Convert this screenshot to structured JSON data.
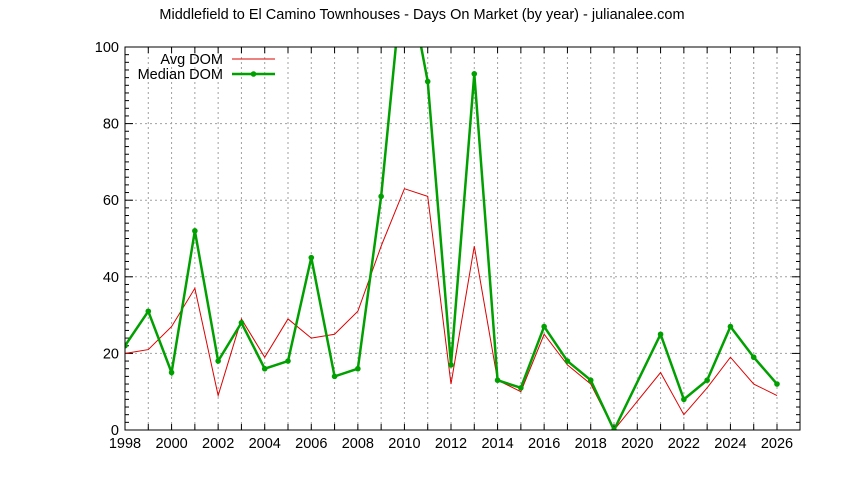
{
  "chart_data": {
    "type": "line",
    "title": "Middlefield to El Camino Townhouses - Days On Market (by year) - julianalee.com",
    "xlabel": "",
    "ylabel": "",
    "xlim": [
      1998,
      2027
    ],
    "ylim": [
      0,
      100
    ],
    "x_ticks": [
      "1998",
      "2000",
      "2002",
      "2004",
      "2006",
      "2008",
      "2010",
      "2012",
      "2014",
      "2016",
      "2018",
      "2020",
      "2022",
      "2024",
      "2026"
    ],
    "y_ticks": [
      "0",
      "20",
      "40",
      "60",
      "80",
      "100"
    ],
    "grid": true,
    "legend_position": "top-left",
    "series": [
      {
        "name": "Avg DOM",
        "color": "#dd0000",
        "x": [
          1998,
          1999,
          2000,
          2001,
          2002,
          2003,
          2004,
          2005,
          2006,
          2007,
          2008,
          2009,
          2010,
          2011,
          2012,
          2013,
          2014,
          2015,
          2016,
          2017,
          2018,
          2019,
          2021,
          2022,
          2023,
          2024,
          2025,
          2026
        ],
        "y": [
          20,
          21,
          27,
          37,
          9,
          29,
          19,
          29,
          24,
          25,
          31,
          48,
          63,
          61,
          12,
          48,
          13,
          10,
          25,
          17,
          12,
          0,
          15,
          4,
          11,
          19,
          12,
          9
        ]
      },
      {
        "name": "Median DOM",
        "color": "#00a000",
        "x": [
          1998,
          1999,
          2000,
          2001,
          2002,
          2003,
          2004,
          2005,
          2006,
          2007,
          2008,
          2009,
          2010,
          2011,
          2012,
          2013,
          2014,
          2015,
          2016,
          2017,
          2018,
          2019,
          2021,
          2022,
          2023,
          2024,
          2025,
          2026
        ],
        "y": [
          22,
          31,
          15,
          52,
          18,
          28,
          16,
          18,
          45,
          14,
          16,
          61,
          123,
          91,
          17,
          93,
          13,
          11,
          27,
          18,
          13,
          0,
          25,
          8,
          13,
          27,
          19,
          12
        ]
      }
    ]
  }
}
